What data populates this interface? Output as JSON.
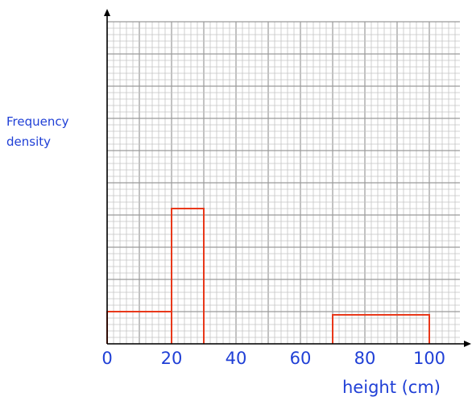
{
  "chart_data": {
    "type": "histogram",
    "title": "",
    "xlabel": "height (cm)",
    "ylabel_lines": [
      "Frequency",
      "density"
    ],
    "x_ticks": [
      0,
      20,
      40,
      60,
      80,
      100
    ],
    "xlim": [
      0,
      110
    ],
    "ylim": [
      0,
      16
    ],
    "grid": true,
    "bars": [
      {
        "x_start": 0,
        "x_end": 20,
        "value": 2.0
      },
      {
        "x_start": 20,
        "x_end": 30,
        "value": 8.4
      },
      {
        "x_start": 70,
        "x_end": 100,
        "value": 1.8
      }
    ],
    "colors": {
      "bar_edge": "#e8381a",
      "grid_minor": "#c4c4c4",
      "grid_major": "#9a9a9a",
      "axis": "#000000",
      "text": "#1f3fd6"
    }
  }
}
